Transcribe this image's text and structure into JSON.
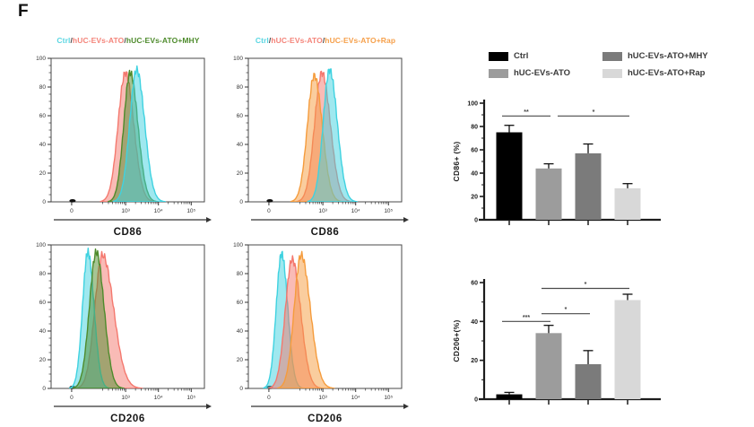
{
  "panel_label": "F",
  "legend": {
    "items": [
      {
        "label": "Ctrl",
        "color": "#000000"
      },
      {
        "label": "hUC-EVs-ATO",
        "color": "#9c9c9c"
      },
      {
        "label": "hUC-EVs-ATO+MHY",
        "color": "#7b7b7b"
      },
      {
        "label": "hUC-EVs-ATO+Rap",
        "color": "#d8d8d8"
      }
    ]
  },
  "series_colors": {
    "ctrl_cyan": "#3fd2e0",
    "ato_red": "#f4786e",
    "mhy_green": "#4e8b2c",
    "rap_orange": "#f59c3d"
  },
  "chart_data": [
    {
      "type": "area",
      "subtype": "flow-histogram",
      "title_parts": [
        {
          "text": "Ctrl",
          "color": "#5ad6e2"
        },
        {
          "text": "/",
          "color": "#444444"
        },
        {
          "text": "hUC-EVs-ATO",
          "color": "#f4847a"
        },
        {
          "text": "/",
          "color": "#444444"
        },
        {
          "text": "hUC-EVs-ATO+MHY",
          "color": "#4e8b2c"
        }
      ],
      "xlabel": "CD86",
      "ylim": [
        0,
        100
      ],
      "yticks": [
        0,
        20,
        40,
        60,
        80,
        100
      ],
      "xticks": [
        {
          "label": "0",
          "pos": 0.134
        },
        {
          "label": "10³",
          "pos": 0.486
        },
        {
          "label": "10⁴",
          "pos": 0.7
        },
        {
          "label": "10⁵",
          "pos": 0.914
        }
      ],
      "series": [
        {
          "name": "hUC-EVs-ATO",
          "color": "#f4786e",
          "peak": 0.485,
          "height": 90,
          "spread_l": 0.048,
          "spread_r": 0.054
        },
        {
          "name": "hUC-EVs-ATO+MHY",
          "color": "#4e8b2c",
          "peak": 0.516,
          "height": 90,
          "spread_l": 0.042,
          "spread_r": 0.05
        },
        {
          "name": "Ctrl",
          "color": "#3fd2e0",
          "peak": 0.558,
          "height": 92,
          "spread_l": 0.045,
          "spread_r": 0.052
        }
      ]
    },
    {
      "type": "area",
      "subtype": "flow-histogram",
      "title_parts": [
        {
          "text": "Ctrl",
          "color": "#5ad6e2"
        },
        {
          "text": "/",
          "color": "#444444"
        },
        {
          "text": "hUC-EVs-ATO",
          "color": "#f4847a"
        },
        {
          "text": "/",
          "color": "#444444"
        },
        {
          "text": "hUC-EVs-ATO+Rap",
          "color": "#f6a04b"
        }
      ],
      "xlabel": "CD86",
      "ylim": [
        0,
        100
      ],
      "yticks": [
        0,
        20,
        40,
        60,
        80,
        100
      ],
      "xticks": [
        {
          "label": "0",
          "pos": 0.134
        },
        {
          "label": "10³",
          "pos": 0.486
        },
        {
          "label": "10⁴",
          "pos": 0.7
        },
        {
          "label": "10⁵",
          "pos": 0.914
        }
      ],
      "series": [
        {
          "name": "hUC-EVs-ATO",
          "color": "#f4786e",
          "peak": 0.48,
          "height": 90,
          "spread_l": 0.048,
          "spread_r": 0.055
        },
        {
          "name": "hUC-EVs-ATO+Rap",
          "color": "#f59c3d",
          "peak": 0.43,
          "height": 88,
          "spread_l": 0.045,
          "spread_r": 0.052
        },
        {
          "name": "Ctrl",
          "color": "#3fd2e0",
          "peak": 0.53,
          "height": 92,
          "spread_l": 0.042,
          "spread_r": 0.05
        }
      ]
    },
    {
      "type": "area",
      "subtype": "flow-histogram",
      "title_parts": [],
      "xlabel": "CD206",
      "ylim": [
        0,
        100
      ],
      "yticks": [
        0,
        20,
        40,
        60,
        80,
        100
      ],
      "xticks": [
        {
          "label": "0",
          "pos": 0.134
        },
        {
          "label": "10³",
          "pos": 0.486
        },
        {
          "label": "10⁴",
          "pos": 0.7
        },
        {
          "label": "10⁵",
          "pos": 0.914
        }
      ],
      "series": [
        {
          "name": "hUC-EVs-ATO",
          "color": "#f4786e",
          "peak": 0.335,
          "height": 93,
          "spread_l": 0.05,
          "spread_r": 0.072
        },
        {
          "name": "Ctrl",
          "color": "#3fd2e0",
          "peak": 0.24,
          "height": 95,
          "spread_l": 0.035,
          "spread_r": 0.04
        },
        {
          "name": "hUC-EVs-ATO+MHY",
          "color": "#4e8b2c",
          "peak": 0.295,
          "height": 95,
          "spread_l": 0.045,
          "spread_r": 0.05
        }
      ]
    },
    {
      "type": "area",
      "subtype": "flow-histogram",
      "title_parts": [],
      "xlabel": "CD206",
      "ylim": [
        0,
        100
      ],
      "yticks": [
        0,
        20,
        40,
        60,
        80,
        100
      ],
      "xticks": [
        {
          "label": "0",
          "pos": 0.134
        },
        {
          "label": "10³",
          "pos": 0.486
        },
        {
          "label": "10⁴",
          "pos": 0.7
        },
        {
          "label": "10⁵",
          "pos": 0.914
        }
      ],
      "series": [
        {
          "name": "Ctrl",
          "color": "#3fd2e0",
          "peak": 0.217,
          "height": 94,
          "spread_l": 0.035,
          "spread_r": 0.04
        },
        {
          "name": "hUC-EVs-ATO",
          "color": "#f4786e",
          "peak": 0.286,
          "height": 90,
          "spread_l": 0.045,
          "spread_r": 0.055
        },
        {
          "name": "hUC-EVs-ATO+Rap",
          "color": "#f59c3d",
          "peak": 0.344,
          "height": 93,
          "spread_l": 0.045,
          "spread_r": 0.06
        }
      ]
    },
    {
      "type": "bar",
      "ylabel": "CD86+ (%)",
      "ylim": [
        0,
        100
      ],
      "yticks": [
        0,
        20,
        40,
        60,
        80,
        100
      ],
      "categories": [
        "Ctrl",
        "hUC-EVs-ATO",
        "hUC-EVs-ATO+MHY",
        "hUC-EVs-ATO+Rap"
      ],
      "values": [
        75,
        44,
        57,
        27
      ],
      "errors": [
        6,
        4,
        8,
        4
      ],
      "colors": [
        "#000000",
        "#9c9c9c",
        "#7b7b7b",
        "#d8d8d8"
      ],
      "significance": [
        {
          "from": 0,
          "to": 1,
          "y": 89,
          "label": "**"
        },
        {
          "from": 1,
          "to": 3,
          "y": 89,
          "label": "*"
        }
      ]
    },
    {
      "type": "bar",
      "ylabel": "CD206+(%)",
      "ylim": [
        0,
        60
      ],
      "yticks": [
        0,
        20,
        40,
        60
      ],
      "categories": [
        "Ctrl",
        "hUC-EVs-ATO",
        "hUC-EVs-ATO+MHY",
        "hUC-EVs-ATO+Rap"
      ],
      "values": [
        2.5,
        34,
        18,
        51
      ],
      "errors": [
        1,
        4,
        7,
        3
      ],
      "colors": [
        "#000000",
        "#9c9c9c",
        "#7b7b7b",
        "#d8d8d8"
      ],
      "significance": [
        {
          "from": 0,
          "to": 1,
          "y": 40,
          "label": "***"
        },
        {
          "from": 1,
          "to": 2,
          "y": 44,
          "label": "*"
        },
        {
          "from": 1,
          "to": 3,
          "y": 57,
          "label": "*"
        }
      ]
    }
  ]
}
